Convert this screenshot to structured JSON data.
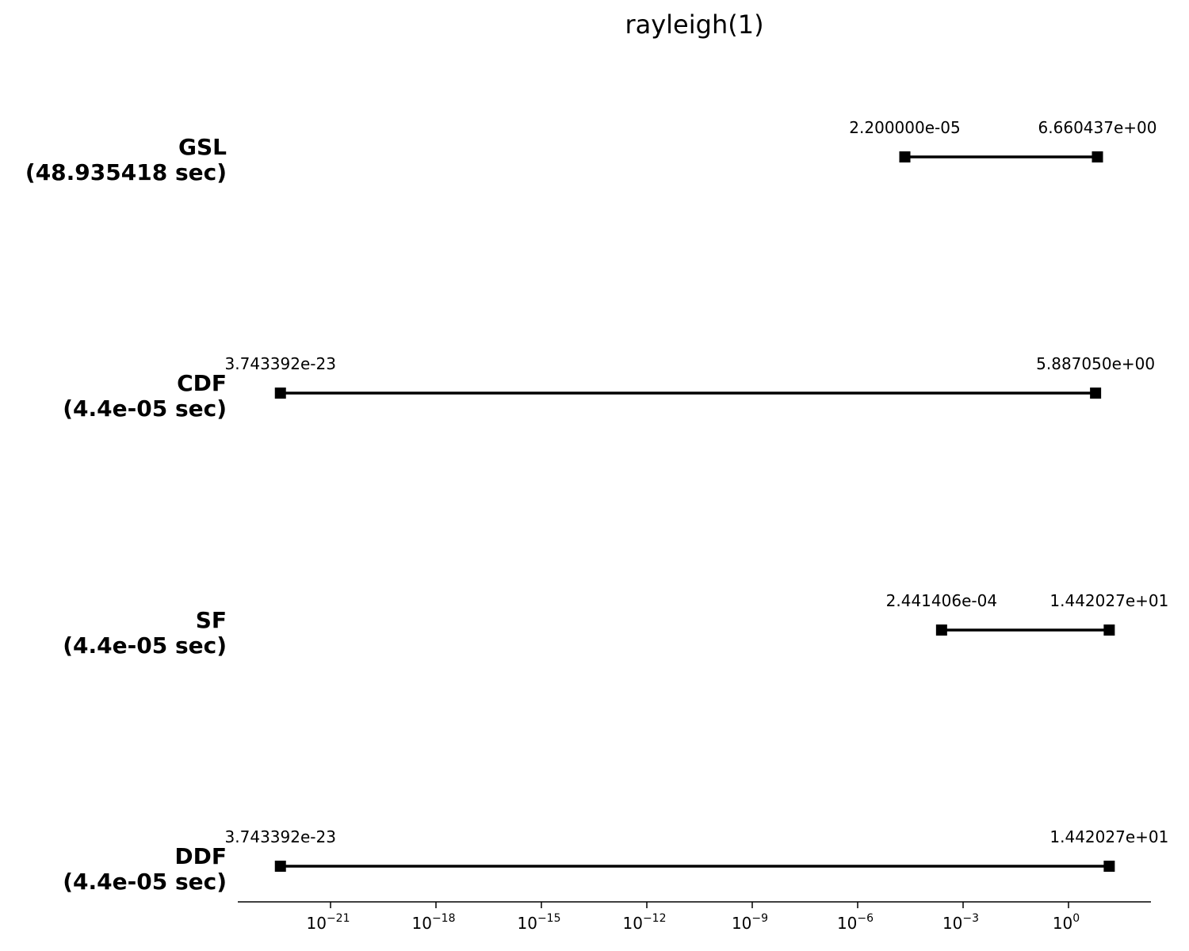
{
  "chart_data": {
    "type": "range",
    "title": "rayleigh(1)",
    "xscale": "log",
    "x_ticks": [
      {
        "base": "10",
        "exp": "−21",
        "value": 1e-21
      },
      {
        "base": "10",
        "exp": "−18",
        "value": 1e-18
      },
      {
        "base": "10",
        "exp": "−15",
        "value": 1e-15
      },
      {
        "base": "10",
        "exp": "−12",
        "value": 1e-12
      },
      {
        "base": "10",
        "exp": "−9",
        "value": 1e-09
      },
      {
        "base": "10",
        "exp": "−6",
        "value": 1e-06
      },
      {
        "base": "10",
        "exp": "−3",
        "value": 0.001
      },
      {
        "base": "10",
        "exp": "0",
        "value": 1
      }
    ],
    "rows": [
      {
        "name": "GSL",
        "time": "(48.935418 sec)",
        "min": 2.2e-05,
        "max": 6.660437,
        "min_label": "2.200000e-05",
        "max_label": "6.660437e+00"
      },
      {
        "name": "CDF",
        "time": "(4.4e-05 sec)",
        "min": 3.743392e-23,
        "max": 5.88705,
        "min_label": "3.743392e-23",
        "max_label": "5.887050e+00"
      },
      {
        "name": "SF",
        "time": "(4.4e-05 sec)",
        "min": 0.0002441406,
        "max": 14.42027,
        "min_label": "2.441406e-04",
        "max_label": "1.442027e+01"
      },
      {
        "name": "DDF",
        "time": "(4.4e-05 sec)",
        "min": 3.743392e-23,
        "max": 14.42027,
        "min_label": "3.743392e-23",
        "max_label": "1.442027e+01"
      }
    ],
    "colors": {
      "line": "#000000",
      "marker": "#000000",
      "text": "#000000"
    }
  }
}
